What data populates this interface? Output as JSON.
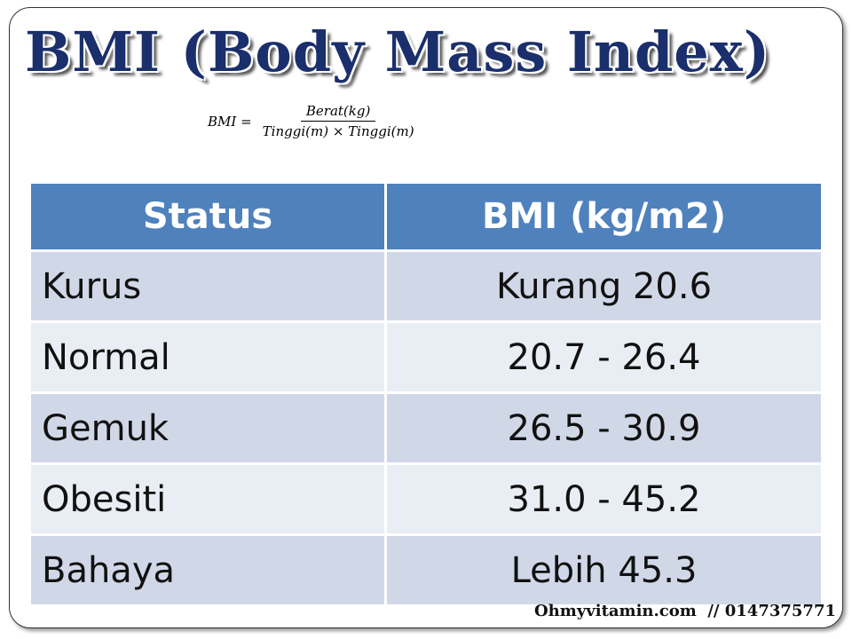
{
  "header": {
    "title": "BMI (Body Mass Index)"
  },
  "formula": {
    "lhs": "BMI =",
    "numerator": "Berat(kg)",
    "denominator": "Tinggi(m) × Tinggi(m)"
  },
  "table": {
    "columns": [
      "Status",
      "BMI (kg/m2)"
    ],
    "rows": [
      [
        "Kurus",
        "Kurang 20.6"
      ],
      [
        "Normal",
        "20.7 - 26.4"
      ],
      [
        "Gemuk",
        "26.5 - 30.9"
      ],
      [
        "Obesiti",
        "31.0 - 45.2"
      ],
      [
        "Bahaya",
        "Lebih 45.3"
      ]
    ]
  },
  "footer": {
    "text": "Ohmyvitamin.com  // 0147375771"
  }
}
